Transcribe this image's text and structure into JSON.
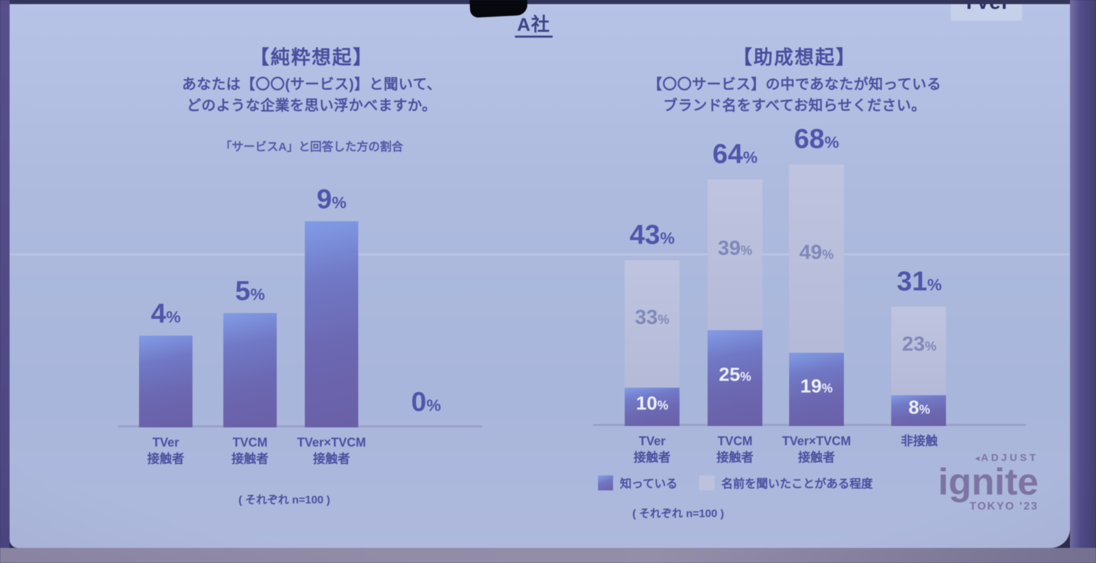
{
  "photo": {
    "title": "A社",
    "logos": {
      "tver": "TVer",
      "adjust": "ADJUST",
      "ignite": "ignite",
      "tokyo": "TOKYO '23"
    },
    "icons": {
      "adjust_triangle": "◂"
    },
    "colors": {
      "slide_bg": "#aebbdf",
      "bar_dark": "#6c66b0",
      "bar_highlight": "#829ce6",
      "bar_light": "#b9bfdb",
      "text_indigo": "#4a509f",
      "axis": "#98a1c6"
    }
  },
  "chart_data": [
    {
      "type": "bar",
      "heading": "【純粋想起】",
      "question_lines": [
        "あなたは【〇〇(サービス)】と聞いて、",
        "どのような企業を思い浮かべますか。"
      ],
      "subtitle": "「サービスA」と回答した方の割合",
      "categories": [
        [
          "TVer",
          "接触者"
        ],
        [
          "TVCM",
          "接触者"
        ],
        [
          "TVer×TVCM",
          "接触者"
        ],
        []
      ],
      "values": [
        4,
        5,
        9,
        0
      ],
      "unit": "%",
      "ylim": [
        0,
        10
      ],
      "note": "( それぞれ n=100 )"
    },
    {
      "type": "stacked-bar",
      "heading": "【助成想起】",
      "question_lines": [
        "【〇〇サービス】の中であなたが知っている",
        "ブランド名をすべてお知らせください。"
      ],
      "categories": [
        [
          "TVer",
          "接触者"
        ],
        [
          "TVCM",
          "接触者"
        ],
        [
          "TVer×TVCM",
          "接触者"
        ],
        [
          "非接触"
        ]
      ],
      "series": [
        {
          "name": "知っている",
          "values": [
            10,
            25,
            19,
            8
          ]
        },
        {
          "name": "名前を聞いたことがある程度",
          "values": [
            33,
            39,
            49,
            23
          ]
        }
      ],
      "totals": [
        43,
        64,
        68,
        31
      ],
      "unit": "%",
      "ylim": [
        0,
        75
      ],
      "legend": [
        "知っている",
        "名前を聞いたことがある程度"
      ],
      "note": "( それぞれ n=100 )"
    }
  ]
}
